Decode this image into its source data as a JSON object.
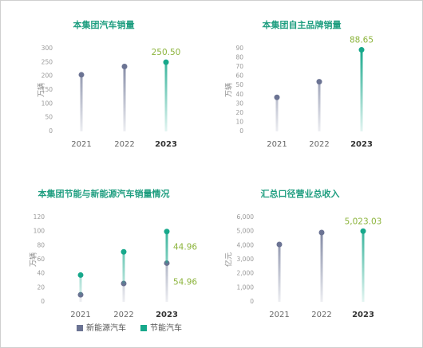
{
  "chart_data": [
    {
      "type": "lollipop",
      "title": "本集团汽车销量",
      "ylabel": "万辆",
      "categories": [
        "2021",
        "2022",
        "2023"
      ],
      "values": [
        205,
        235,
        250.5
      ],
      "value_labels": [
        null,
        null,
        "250.50"
      ],
      "colors": [
        "#6b7393",
        "#6b7393",
        "#17a88b"
      ],
      "label_color": "#8cb43c",
      "ylim": [
        0,
        300
      ],
      "yticks": [
        0,
        50,
        100,
        150,
        200,
        250,
        300
      ]
    },
    {
      "type": "lollipop",
      "title": "本集团自主品牌销量",
      "ylabel": "万辆",
      "categories": [
        "2021",
        "2022",
        "2023"
      ],
      "values": [
        37,
        54,
        88.65
      ],
      "colors": [
        "#6b7393",
        "#6b7393",
        "#17a88b"
      ],
      "label_color": "#8cb43c",
      "ylim": [
        0,
        90
      ],
      "yticks": [
        0,
        10,
        20,
        30,
        40,
        50,
        60,
        70,
        80,
        90
      ]
    },
    {
      "type": "stacked-lollipop",
      "title": "本集团节能与新能源汽车销量情况",
      "ylabel": "万辆",
      "categories": [
        "2021",
        "2022",
        "2023"
      ],
      "series": [
        {
          "name": "新能源汽车",
          "color": "#6b7393",
          "values": [
            10,
            26,
            54.96
          ]
        },
        {
          "name": "节能汽车",
          "color": "#17a88b",
          "values": [
            28,
            45,
            44.96
          ]
        }
      ],
      "label_color": "#8cb43c",
      "ylim": [
        0,
        120
      ],
      "yticks": [
        0,
        20,
        40,
        60,
        80,
        100,
        120
      ]
    },
    {
      "type": "lollipop",
      "title": "汇总口径营业总收入",
      "ylabel": "亿元",
      "categories": [
        "2021",
        "2022",
        "2023"
      ],
      "values": [
        4075,
        4925,
        5023.03
      ],
      "value_labels": [
        null,
        null,
        "5,023.03"
      ],
      "colors": [
        "#6b7393",
        "#6b7393",
        "#17a88b"
      ],
      "label_color": "#8cb43c",
      "ylim": [
        0,
        6000
      ],
      "yticks": [
        0,
        {
          "value": 1000,
          "label": "1,000"
        },
        {
          "value": 2000,
          "label": "2,000"
        },
        {
          "value": 3000,
          "label": "3,000"
        },
        {
          "value": 4000,
          "label": "4,000"
        },
        {
          "value": 5000,
          "label": "5,000"
        },
        {
          "value": 6000,
          "label": "6,000"
        }
      ]
    }
  ]
}
